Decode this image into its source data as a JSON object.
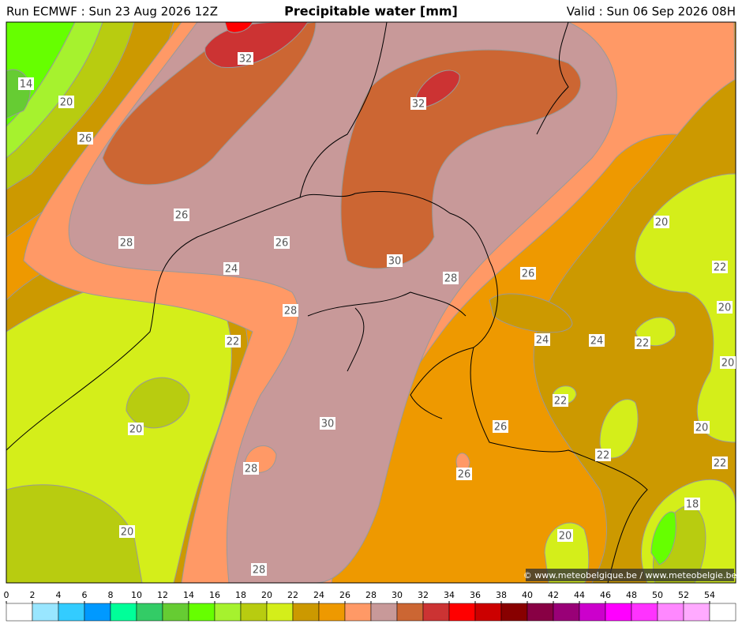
{
  "header": {
    "run": "Run ECMWF : Sun 23 Aug 2026 12Z",
    "title": "Precipitable water [mm]",
    "valid": "Valid : Sun 06 Sep 2026 08H"
  },
  "contour_labels": [
    14,
    20,
    26,
    32,
    32,
    26,
    28,
    26,
    24,
    30,
    28,
    26,
    22,
    20,
    20,
    28,
    22,
    24,
    24,
    22,
    20,
    22,
    30,
    26,
    20,
    20,
    22,
    22,
    28,
    26,
    18,
    20,
    20,
    28
  ],
  "copyright": "© www.meteobelgique.be / www.meteobelgie.be",
  "legend": {
    "ticks": [
      0,
      2,
      4,
      6,
      8,
      10,
      12,
      14,
      16,
      18,
      20,
      22,
      24,
      26,
      28,
      30,
      32,
      34,
      36,
      38,
      40,
      42,
      44,
      46,
      48,
      50,
      52,
      54
    ],
    "colors": [
      "#ffffff",
      "#99e6ff",
      "#33ccff",
      "#0099ff",
      "#00ff99",
      "#33cc66",
      "#66cc33",
      "#66ff00",
      "#a6f22e",
      "#b8cc10",
      "#d4ee1a",
      "#cc9900",
      "#ee9900",
      "#ff9966",
      "#c89999",
      "#cc6633",
      "#cc3333",
      "#ff0000",
      "#cc0000",
      "#880000",
      "#880044",
      "#990077",
      "#cc00cc",
      "#ff00ff",
      "#ff33ff",
      "#ff88ff",
      "#ffaaff",
      "#ffffff"
    ]
  }
}
